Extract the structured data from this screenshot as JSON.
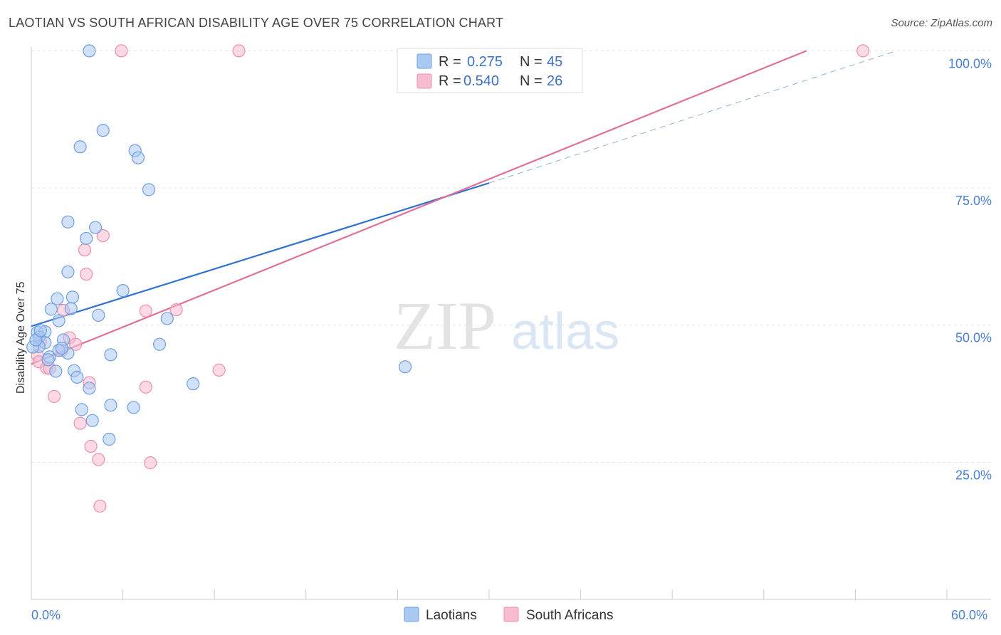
{
  "title": "LAOTIAN VS SOUTH AFRICAN DISABILITY AGE OVER 75 CORRELATION CHART",
  "source": "Source: ZipAtlas.com",
  "watermark": {
    "zip": "ZIP",
    "atlas": "atlas"
  },
  "colors": {
    "laotian_fill": "#a9c8f2",
    "laotian_stroke": "#6f9fe0",
    "laotian_line": "#2f72d0",
    "sa_fill": "#f7bcd0",
    "sa_stroke": "#ee8fb0",
    "sa_line": "#e0709a",
    "tick_text": "#4a7fd4"
  },
  "legend_top": [
    {
      "r_label": "R =",
      "r_value": "0.275",
      "n_label": "N =",
      "n_value": "45"
    },
    {
      "r_label": "R =",
      "r_value": "0.540",
      "n_label": "N =",
      "n_value": "26"
    }
  ],
  "chart_data": {
    "type": "scatter",
    "title": "LAOTIAN VS SOUTH AFRICAN DISABILITY AGE OVER 75 CORRELATION CHART",
    "xlabel": "",
    "ylabel": "Disability Age Over 75",
    "xlim": [
      0,
      60
    ],
    "ylim": [
      0,
      102
    ],
    "x_tick_labels": [
      "0.0%",
      "60.0%"
    ],
    "y_ticks": [
      25,
      50,
      75,
      100
    ],
    "y_tick_labels": [
      "25.0%",
      "50.0%",
      "75.0%",
      "100.0%"
    ],
    "grid": true,
    "legend_position": "bottom",
    "series": [
      {
        "name": "Laotians",
        "points": [
          [
            3.8,
            100
          ],
          [
            4.7,
            85.5
          ],
          [
            3.2,
            82.5
          ],
          [
            6.8,
            81.8
          ],
          [
            7.0,
            80.5
          ],
          [
            7.7,
            74.7
          ],
          [
            2.4,
            68.8
          ],
          [
            4.2,
            67.8
          ],
          [
            3.6,
            65.8
          ],
          [
            2.4,
            59.7
          ],
          [
            6.0,
            56.3
          ],
          [
            1.7,
            54.8
          ],
          [
            2.7,
            55.1
          ],
          [
            1.3,
            52.9
          ],
          [
            2.6,
            53.0
          ],
          [
            4.4,
            51.8
          ],
          [
            8.9,
            51.2
          ],
          [
            1.8,
            50.8
          ],
          [
            0.4,
            48.7
          ],
          [
            0.9,
            48.8
          ],
          [
            0.5,
            47.8
          ],
          [
            2.1,
            47.3
          ],
          [
            0.9,
            46.8
          ],
          [
            0.5,
            46.1
          ],
          [
            2.4,
            44.9
          ],
          [
            8.4,
            46.5
          ],
          [
            1.2,
            44.2
          ],
          [
            1.8,
            45.4
          ],
          [
            5.2,
            44.6
          ],
          [
            2.8,
            41.7
          ],
          [
            1.6,
            41.6
          ],
          [
            3.0,
            40.5
          ],
          [
            3.8,
            38.5
          ],
          [
            10.6,
            39.3
          ],
          [
            24.5,
            42.4
          ],
          [
            5.2,
            35.4
          ],
          [
            6.7,
            35.0
          ],
          [
            3.3,
            34.6
          ],
          [
            4.0,
            32.6
          ],
          [
            5.1,
            29.2
          ],
          [
            0.1,
            46.0
          ],
          [
            0.3,
            47.3
          ],
          [
            2.0,
            45.8
          ],
          [
            1.1,
            43.7
          ],
          [
            0.6,
            49.0
          ]
        ]
      },
      {
        "name": "South Africans",
        "points": [
          [
            5.9,
            100
          ],
          [
            13.6,
            100
          ],
          [
            54.5,
            100
          ],
          [
            4.7,
            66.3
          ],
          [
            3.5,
            63.7
          ],
          [
            3.6,
            59.3
          ],
          [
            2.1,
            52.7
          ],
          [
            7.5,
            52.6
          ],
          [
            9.5,
            52.8
          ],
          [
            2.5,
            47.7
          ],
          [
            2.9,
            46.5
          ],
          [
            2.0,
            45.4
          ],
          [
            0.6,
            47.0
          ],
          [
            0.4,
            44.5
          ],
          [
            0.5,
            43.3
          ],
          [
            1.0,
            42.2
          ],
          [
            1.2,
            42.1
          ],
          [
            12.3,
            41.8
          ],
          [
            3.8,
            39.5
          ],
          [
            7.5,
            38.7
          ],
          [
            1.5,
            37.0
          ],
          [
            3.2,
            32.1
          ],
          [
            3.9,
            27.9
          ],
          [
            4.4,
            25.5
          ],
          [
            7.8,
            24.9
          ],
          [
            4.5,
            17.0
          ]
        ]
      }
    ],
    "trend_lines": [
      {
        "name": "Laotians",
        "x": [
          0,
          30
        ],
        "y": [
          49.8,
          75.9
        ]
      },
      {
        "name": "South Africans",
        "x": [
          0,
          50.8
        ],
        "y": [
          42.9,
          100.0
        ]
      }
    ],
    "extension_line": {
      "x": [
        30,
        56.7
      ],
      "y": [
        75.9,
        100.0
      ]
    }
  }
}
